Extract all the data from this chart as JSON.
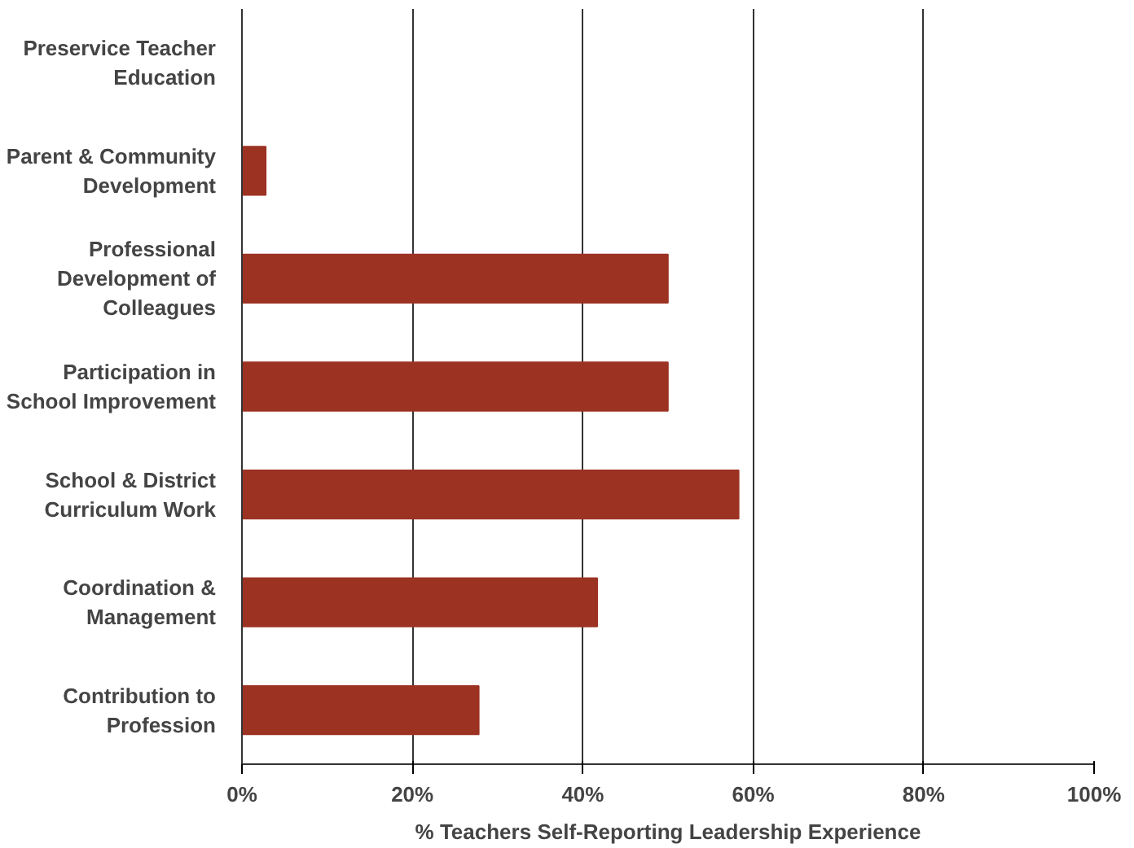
{
  "chart_data": {
    "type": "bar",
    "orientation": "horizontal",
    "categories": [
      "Preservice Teacher Education",
      "Parent & Community Development",
      "Professional Development of Colleagues",
      "Participation in School Improvement",
      "School & District Curriculum Work",
      "Coordination & Management",
      "Contribution to Profession"
    ],
    "values": [
      0,
      2.8,
      50,
      50,
      58.3,
      41.7,
      27.8
    ],
    "color": "#9c3222",
    "xlabel": "% Teachers Self-Reporting Leadership Experience",
    "xlim": [
      0,
      100
    ],
    "xticks": [
      {
        "value": 0,
        "label": "0%"
      },
      {
        "value": 20,
        "label": "20%"
      },
      {
        "value": 40,
        "label": "40%"
      },
      {
        "value": 60,
        "label": "60%"
      },
      {
        "value": 80,
        "label": "80%"
      },
      {
        "value": 100,
        "label": "100%"
      }
    ],
    "grid": "x"
  }
}
